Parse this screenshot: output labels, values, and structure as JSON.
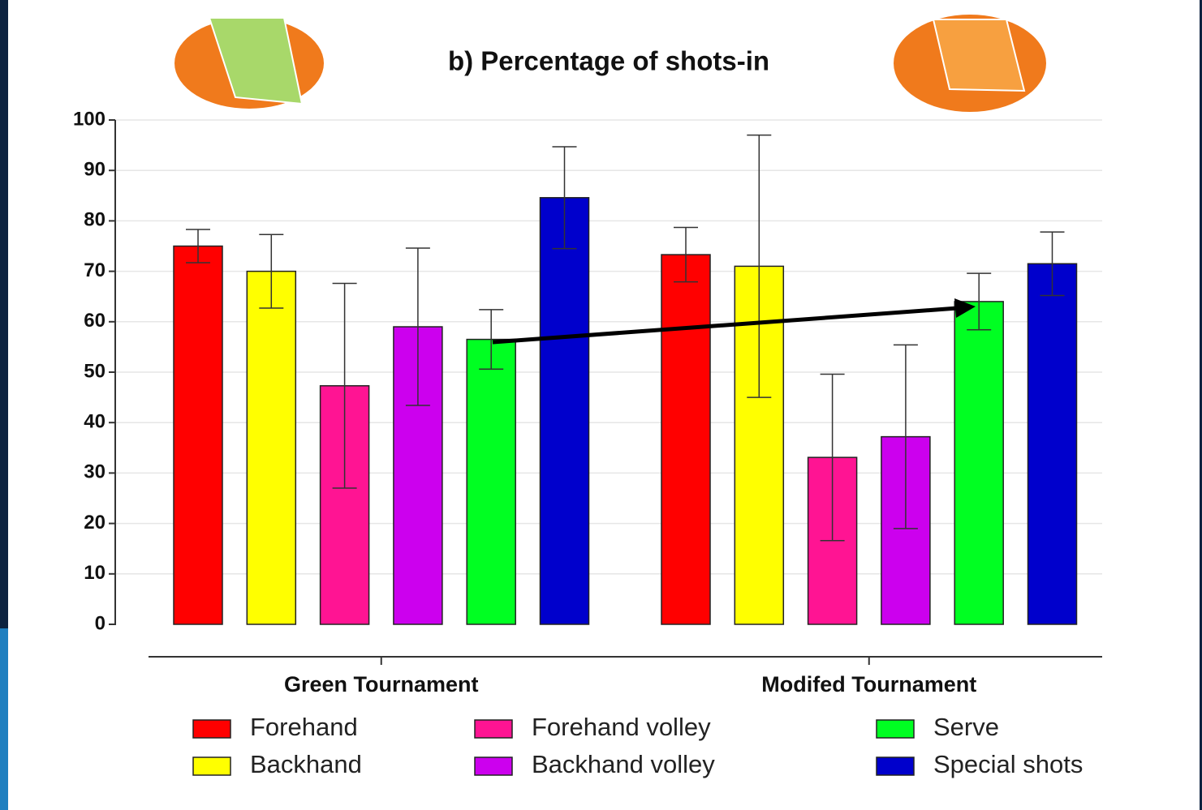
{
  "chart_data": {
    "type": "bar",
    "title": "b) Percentage of shots-in",
    "categories": [
      "Green Tournament",
      "Modifed Tournament"
    ],
    "ylim": [
      0,
      100
    ],
    "yticks": [
      0,
      10,
      20,
      30,
      40,
      50,
      60,
      70,
      80,
      90,
      100
    ],
    "grid": true,
    "series": [
      {
        "name": "Forehand",
        "color": "#ff0000",
        "values": [
          75.0,
          73.3
        ],
        "errors": [
          3.3,
          5.4
        ]
      },
      {
        "name": "Backhand",
        "color": "#ffff00",
        "values": [
          70.0,
          71.0
        ],
        "errors": [
          7.3,
          26.0
        ]
      },
      {
        "name": "Forehand volley",
        "color": "#ff1493",
        "values": [
          47.3,
          33.1
        ],
        "errors": [
          20.3,
          16.5
        ]
      },
      {
        "name": "Backhand volley",
        "color": "#cc00ee",
        "values": [
          59.0,
          37.2
        ],
        "errors": [
          15.6,
          18.2
        ]
      },
      {
        "name": "Serve",
        "color": "#00ff22",
        "values": [
          56.5,
          64.0
        ],
        "errors": [
          5.9,
          5.6
        ]
      },
      {
        "name": "Special shots",
        "color": "#0000cc",
        "values": [
          84.6,
          71.5
        ],
        "errors": [
          10.1,
          6.3
        ]
      }
    ]
  }
}
